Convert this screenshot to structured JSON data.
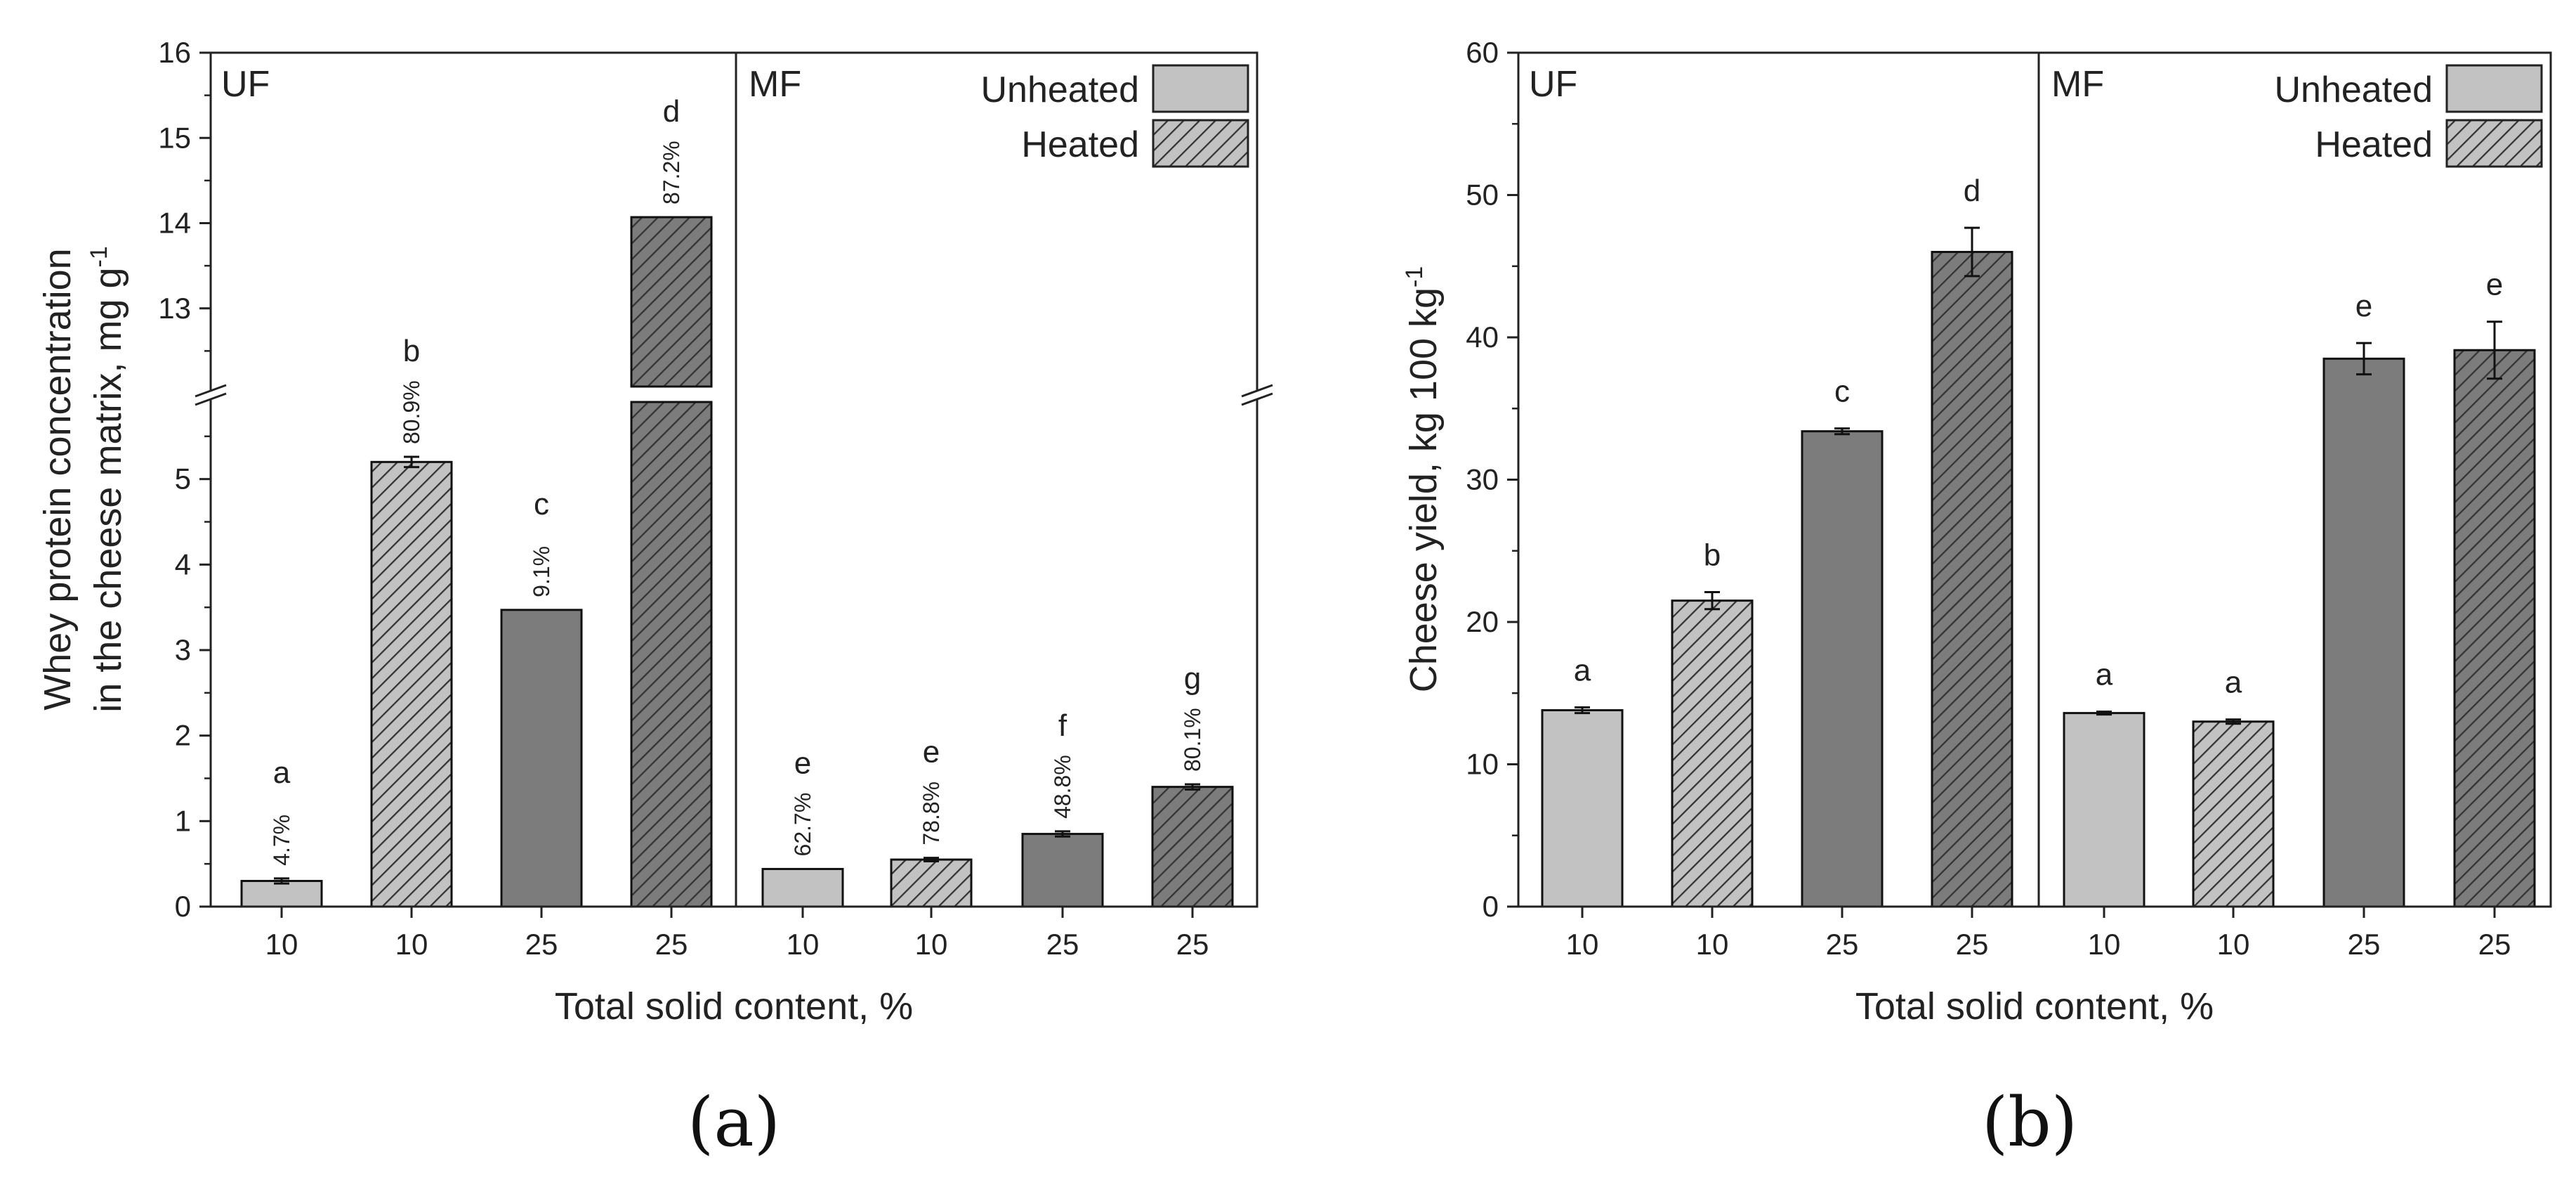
{
  "colors": {
    "unheated": "#c2c2c2",
    "uf25": "#7c7c7c",
    "hatch_light_bg": "#c2c2c2",
    "hatch_dark_bg": "#7c7c7c",
    "hatch_line": "#333333",
    "axis": "#222222",
    "text": "#222222"
  },
  "chart_data": [
    {
      "id": "a",
      "type": "bar",
      "caption": "(a)",
      "title": "",
      "xlabel": "Total solid content, %",
      "ylabel_line1": "Whey protein concentration",
      "ylabel_line2": "in the cheese matrix, mg g",
      "ylabel_sup": "-1",
      "y_axis_break": {
        "lower_range": [
          0,
          6
        ],
        "upper_range": [
          12,
          16
        ]
      },
      "yticks_lower": [
        "0",
        "1",
        "2",
        "3",
        "4",
        "5"
      ],
      "yticks_upper": [
        "13",
        "14",
        "15",
        "16"
      ],
      "group_labels": [
        "UF",
        "MF"
      ],
      "legend": [
        {
          "label": "Unheated",
          "pattern": "solid"
        },
        {
          "label": "Heated",
          "pattern": "hatched"
        }
      ],
      "legend_position": "top-right",
      "bars": [
        {
          "group": "UF",
          "category": "10",
          "condition": "Unheated",
          "value": 0.3,
          "error": 0.03,
          "letter": "a",
          "annotation": "4.7%"
        },
        {
          "group": "UF",
          "category": "10",
          "condition": "Heated",
          "value": 5.2,
          "error": 0.06,
          "letter": "b",
          "annotation": "80.9%"
        },
        {
          "group": "UF",
          "category": "25",
          "condition": "Unheated",
          "value": 3.47,
          "error": 0.0,
          "letter": "c",
          "annotation": "9.1%"
        },
        {
          "group": "UF",
          "category": "25",
          "condition": "Heated",
          "value": 14.07,
          "error": 0.0,
          "letter": "d",
          "annotation": "87.2%"
        },
        {
          "group": "MF",
          "category": "10",
          "condition": "Unheated",
          "value": 0.44,
          "error": 0.0,
          "letter": "e",
          "annotation": "62.7%"
        },
        {
          "group": "MF",
          "category": "10",
          "condition": "Heated",
          "value": 0.55,
          "error": 0.02,
          "letter": "e",
          "annotation": "78.8%"
        },
        {
          "group": "MF",
          "category": "25",
          "condition": "Unheated",
          "value": 0.85,
          "error": 0.03,
          "letter": "f",
          "annotation": "48.8%"
        },
        {
          "group": "MF",
          "category": "25",
          "condition": "Heated",
          "value": 1.4,
          "error": 0.03,
          "letter": "g",
          "annotation": "80.1%"
        }
      ]
    },
    {
      "id": "b",
      "type": "bar",
      "caption": "(b)",
      "title": "",
      "xlabel": "Total solid content, %",
      "ylabel": "Cheese yield, kg 100 kg",
      "ylabel_sup": "-1",
      "ylim": [
        0,
        60
      ],
      "yticks": [
        "0",
        "10",
        "20",
        "30",
        "40",
        "50",
        "60"
      ],
      "group_labels": [
        "UF",
        "MF"
      ],
      "legend": [
        {
          "label": "Unheated",
          "pattern": "solid"
        },
        {
          "label": "Heated",
          "pattern": "hatched"
        }
      ],
      "legend_position": "top-right",
      "bars": [
        {
          "group": "UF",
          "category": "10",
          "condition": "Unheated",
          "value": 13.8,
          "error": 0.2,
          "letter": "a"
        },
        {
          "group": "UF",
          "category": "10",
          "condition": "Heated",
          "value": 21.5,
          "error": 0.6,
          "letter": "b"
        },
        {
          "group": "UF",
          "category": "25",
          "condition": "Unheated",
          "value": 33.4,
          "error": 0.2,
          "letter": "c"
        },
        {
          "group": "UF",
          "category": "25",
          "condition": "Heated",
          "value": 46.0,
          "error": 1.7,
          "letter": "d"
        },
        {
          "group": "MF",
          "category": "10",
          "condition": "Unheated",
          "value": 13.6,
          "error": 0.1,
          "letter": "a"
        },
        {
          "group": "MF",
          "category": "10",
          "condition": "Heated",
          "value": 13.0,
          "error": 0.15,
          "letter": "a"
        },
        {
          "group": "MF",
          "category": "25",
          "condition": "Unheated",
          "value": 38.5,
          "error": 1.1,
          "letter": "e"
        },
        {
          "group": "MF",
          "category": "25",
          "condition": "Heated",
          "value": 39.1,
          "error": 2.0,
          "letter": "e"
        }
      ]
    }
  ]
}
